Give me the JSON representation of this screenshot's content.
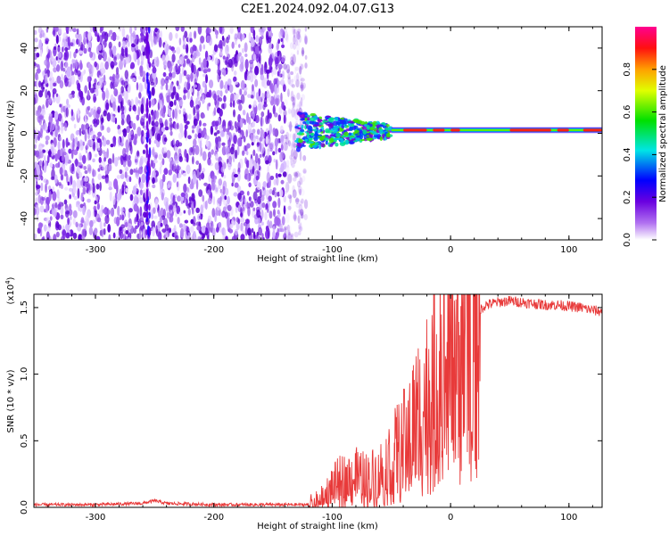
{
  "title": "C2E1.2024.092.04.07.G13",
  "chart_data": [
    {
      "type": "heatmap",
      "title": "C2E1.2024.092.04.07.G13",
      "xlabel": "Height of straight line (km)",
      "ylabel": "Frequency (Hz)",
      "xlim": [
        -352,
        128
      ],
      "ylim": [
        -50,
        50
      ],
      "xticks": [
        -300,
        -200,
        -100,
        0,
        100
      ],
      "yticks": [
        -40,
        -20,
        0,
        20,
        40
      ],
      "colorbar": {
        "label": "Normalized spectral amplitude",
        "range": [
          0,
          1
        ],
        "ticks": [
          0.0,
          0.2,
          0.4,
          0.6,
          0.8
        ],
        "colormap": [
          "#ffffff",
          "#7a00d6",
          "#0000ff",
          "#00e5e5",
          "#00e000",
          "#ffff00",
          "#ff8000",
          "#ff0000",
          "#ff0080"
        ]
      },
      "regions": [
        {
          "name": "scattered noise",
          "x_range": [
            -352,
            -130
          ],
          "freq_range": [
            -50,
            50
          ],
          "amplitude": 0.05
        },
        {
          "name": "transition",
          "x_range": [
            -130,
            -50
          ],
          "freq_range": [
            -8,
            6
          ],
          "amplitude": 0.4
        },
        {
          "name": "coherent carrier",
          "x_range": [
            -50,
            128
          ],
          "freq_range": [
            -2,
            4
          ],
          "amplitude": 0.85
        }
      ],
      "grid": false
    },
    {
      "type": "line",
      "xlabel": "Height of straight line (km)",
      "ylabel": "SNR (10 * v/v)",
      "y_multiplier": "(x10^4)",
      "xlim": [
        -352,
        128
      ],
      "ylim": [
        0,
        1.6
      ],
      "xticks": [
        -300,
        -200,
        -100,
        0,
        100
      ],
      "yticks": [
        0.0,
        0.5,
        1.0,
        1.5
      ],
      "series": [
        {
          "color": "#e83a3a",
          "x": [
            -352,
            -300,
            -260,
            -250,
            -240,
            -200,
            -150,
            -120,
            -110,
            -100,
            -90,
            -80,
            -70,
            -60,
            -50,
            -40,
            -30,
            -20,
            -10,
            0,
            10,
            20,
            30,
            40,
            50,
            60,
            70,
            80,
            90,
            100,
            110,
            120,
            128
          ],
          "y": [
            0.02,
            0.02,
            0.03,
            0.05,
            0.03,
            0.02,
            0.02,
            0.02,
            0.05,
            0.15,
            0.2,
            0.22,
            0.2,
            0.25,
            0.35,
            0.45,
            0.65,
            0.8,
            0.95,
            1.1,
            1.3,
            1.45,
            1.52,
            1.54,
            1.55,
            1.54,
            1.53,
            1.52,
            1.52,
            1.51,
            1.5,
            1.48,
            1.47
          ]
        }
      ]
    }
  ]
}
